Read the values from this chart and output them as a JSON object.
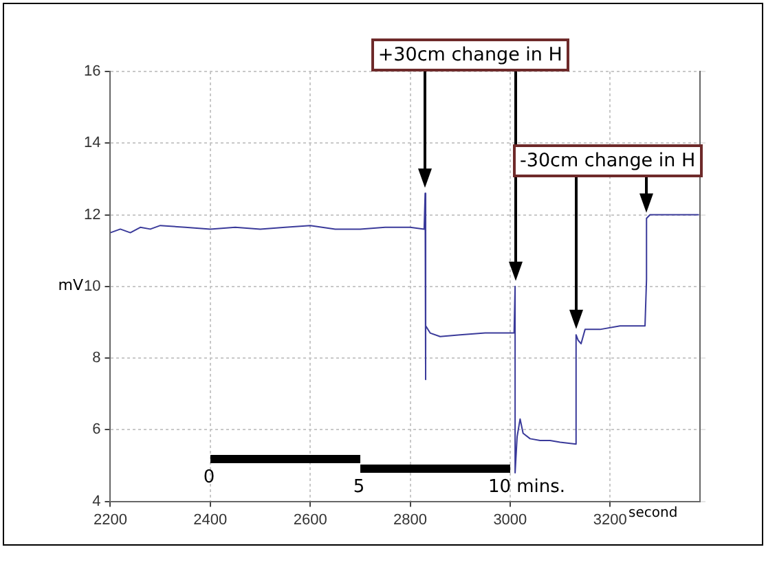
{
  "chart_data": {
    "type": "line",
    "xlabel": "second",
    "ylabel": "mV",
    "xlim": [
      2200,
      3380
    ],
    "xticks": [
      2200,
      2400,
      2600,
      2800,
      3000,
      3200
    ],
    "ylim": [
      4,
      16
    ],
    "yticks": [
      4,
      6,
      8,
      10,
      12,
      14,
      16
    ],
    "grid": true,
    "legend": false,
    "marker": "none",
    "line_style": "solid",
    "series": [
      {
        "color": "#3a3a9a",
        "x": [
          2200,
          2220,
          2240,
          2260,
          2280,
          2300,
          2350,
          2400,
          2450,
          2500,
          2550,
          2600,
          2650,
          2700,
          2750,
          2800,
          2828,
          2830,
          2830,
          2832,
          2840,
          2860,
          2900,
          2950,
          3000,
          3008,
          3010,
          3010,
          3014,
          3020,
          3026,
          3040,
          3060,
          3080,
          3100,
          3132,
          3132,
          3136,
          3142,
          3150,
          3180,
          3220,
          3270,
          3273,
          3273,
          3280,
          3320,
          3378
        ],
        "values": [
          11.5,
          11.6,
          11.5,
          11.65,
          11.6,
          11.7,
          11.65,
          11.6,
          11.65,
          11.6,
          11.65,
          11.7,
          11.6,
          11.6,
          11.65,
          11.65,
          11.6,
          12.6,
          7.4,
          8.9,
          8.7,
          8.6,
          8.65,
          8.7,
          8.7,
          8.7,
          10.0,
          4.8,
          5.8,
          6.3,
          5.9,
          5.75,
          5.7,
          5.7,
          5.65,
          5.6,
          8.65,
          8.5,
          8.4,
          8.8,
          8.8,
          8.9,
          8.9,
          10.2,
          11.9,
          12.0,
          12.0,
          12.0
        ]
      }
    ],
    "annotations": [
      "+30cm change in H",
      "-30cm change in H",
      "0",
      "5",
      "10 mins."
    ]
  }
}
